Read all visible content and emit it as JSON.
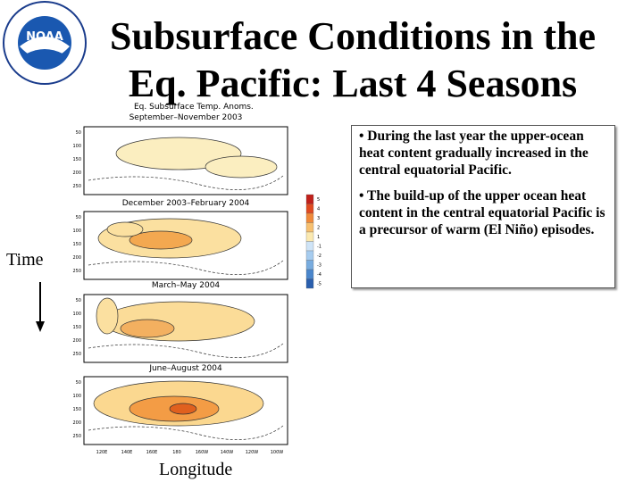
{
  "logo": {
    "text": "NOAA"
  },
  "header": {
    "title_lines": [
      "Subsurface Conditions in the",
      "Eq. Pacific: Last 4 Seasons"
    ]
  },
  "figure": {
    "caption": "Eq. Subsurface Temp. Anoms.",
    "panels": [
      "September–November 2003",
      "December 2003–February 2004",
      "March–May 2004",
      "June–August 2004"
    ],
    "depths": [
      "50",
      "100",
      "150",
      "200",
      "250"
    ],
    "longitudes": [
      "120E",
      "140E",
      "160E",
      "180",
      "160W",
      "140W",
      "120W",
      "100W"
    ],
    "colorbar": [
      "5",
      "4",
      "3",
      "2",
      "1",
      "-1",
      "-2",
      "-3",
      "-4",
      "-5"
    ]
  },
  "time_label": "Time",
  "longitude_label": "Longitude",
  "bullets": [
    "• During the last year the upper-ocean heat content gradually increased in the central equatorial Pacific.",
    "• The build-up of the upper ocean heat content in the central equatorial Pacific is a precursor of warm (El Niño) episodes."
  ]
}
